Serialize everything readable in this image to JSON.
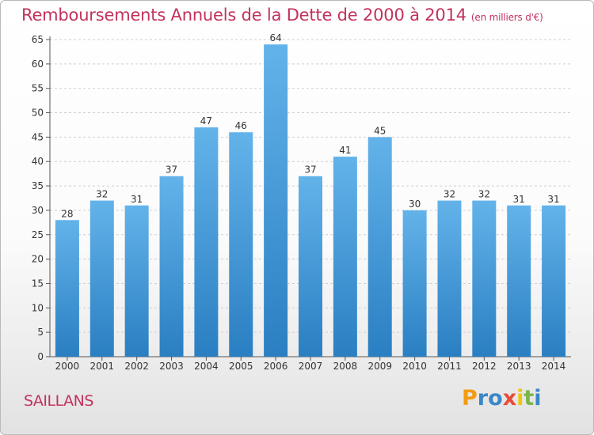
{
  "title": "Remboursements Annuels de la Dette de 2000 à 2014",
  "unit_label": "(en milliers d'€)",
  "location": "SAILLANS",
  "logo": {
    "text": "Proxiti",
    "letters": [
      "P",
      "r",
      "o",
      "x",
      "i",
      "t",
      "i"
    ],
    "colors": [
      "#f39c12",
      "#3a87c8",
      "#3a87c8",
      "#e74c3c",
      "#f1c40f",
      "#7ab648",
      "#3a87c8"
    ]
  },
  "colors": {
    "title": "#c2325c",
    "bar_light": "#63b3ea",
    "bar_dark": "#2a7fc2",
    "grid": "#cfcfcf"
  },
  "chart_data": {
    "type": "bar",
    "title": "Remboursements Annuels de la Dette de 2000 à 2014",
    "ylabel": "",
    "xlabel": "",
    "categories": [
      "2000",
      "2001",
      "2002",
      "2003",
      "2004",
      "2005",
      "2006",
      "2007",
      "2008",
      "2009",
      "2010",
      "2011",
      "2012",
      "2013",
      "2014"
    ],
    "values": [
      28,
      32,
      31,
      37,
      47,
      46,
      64,
      37,
      41,
      45,
      30,
      32,
      32,
      31,
      31
    ],
    "ylim": [
      0,
      65
    ],
    "yticks": [
      0,
      5,
      10,
      15,
      20,
      25,
      30,
      35,
      40,
      45,
      50,
      55,
      60,
      65
    ],
    "grid": "horizontal dashed",
    "data_labels": true
  }
}
